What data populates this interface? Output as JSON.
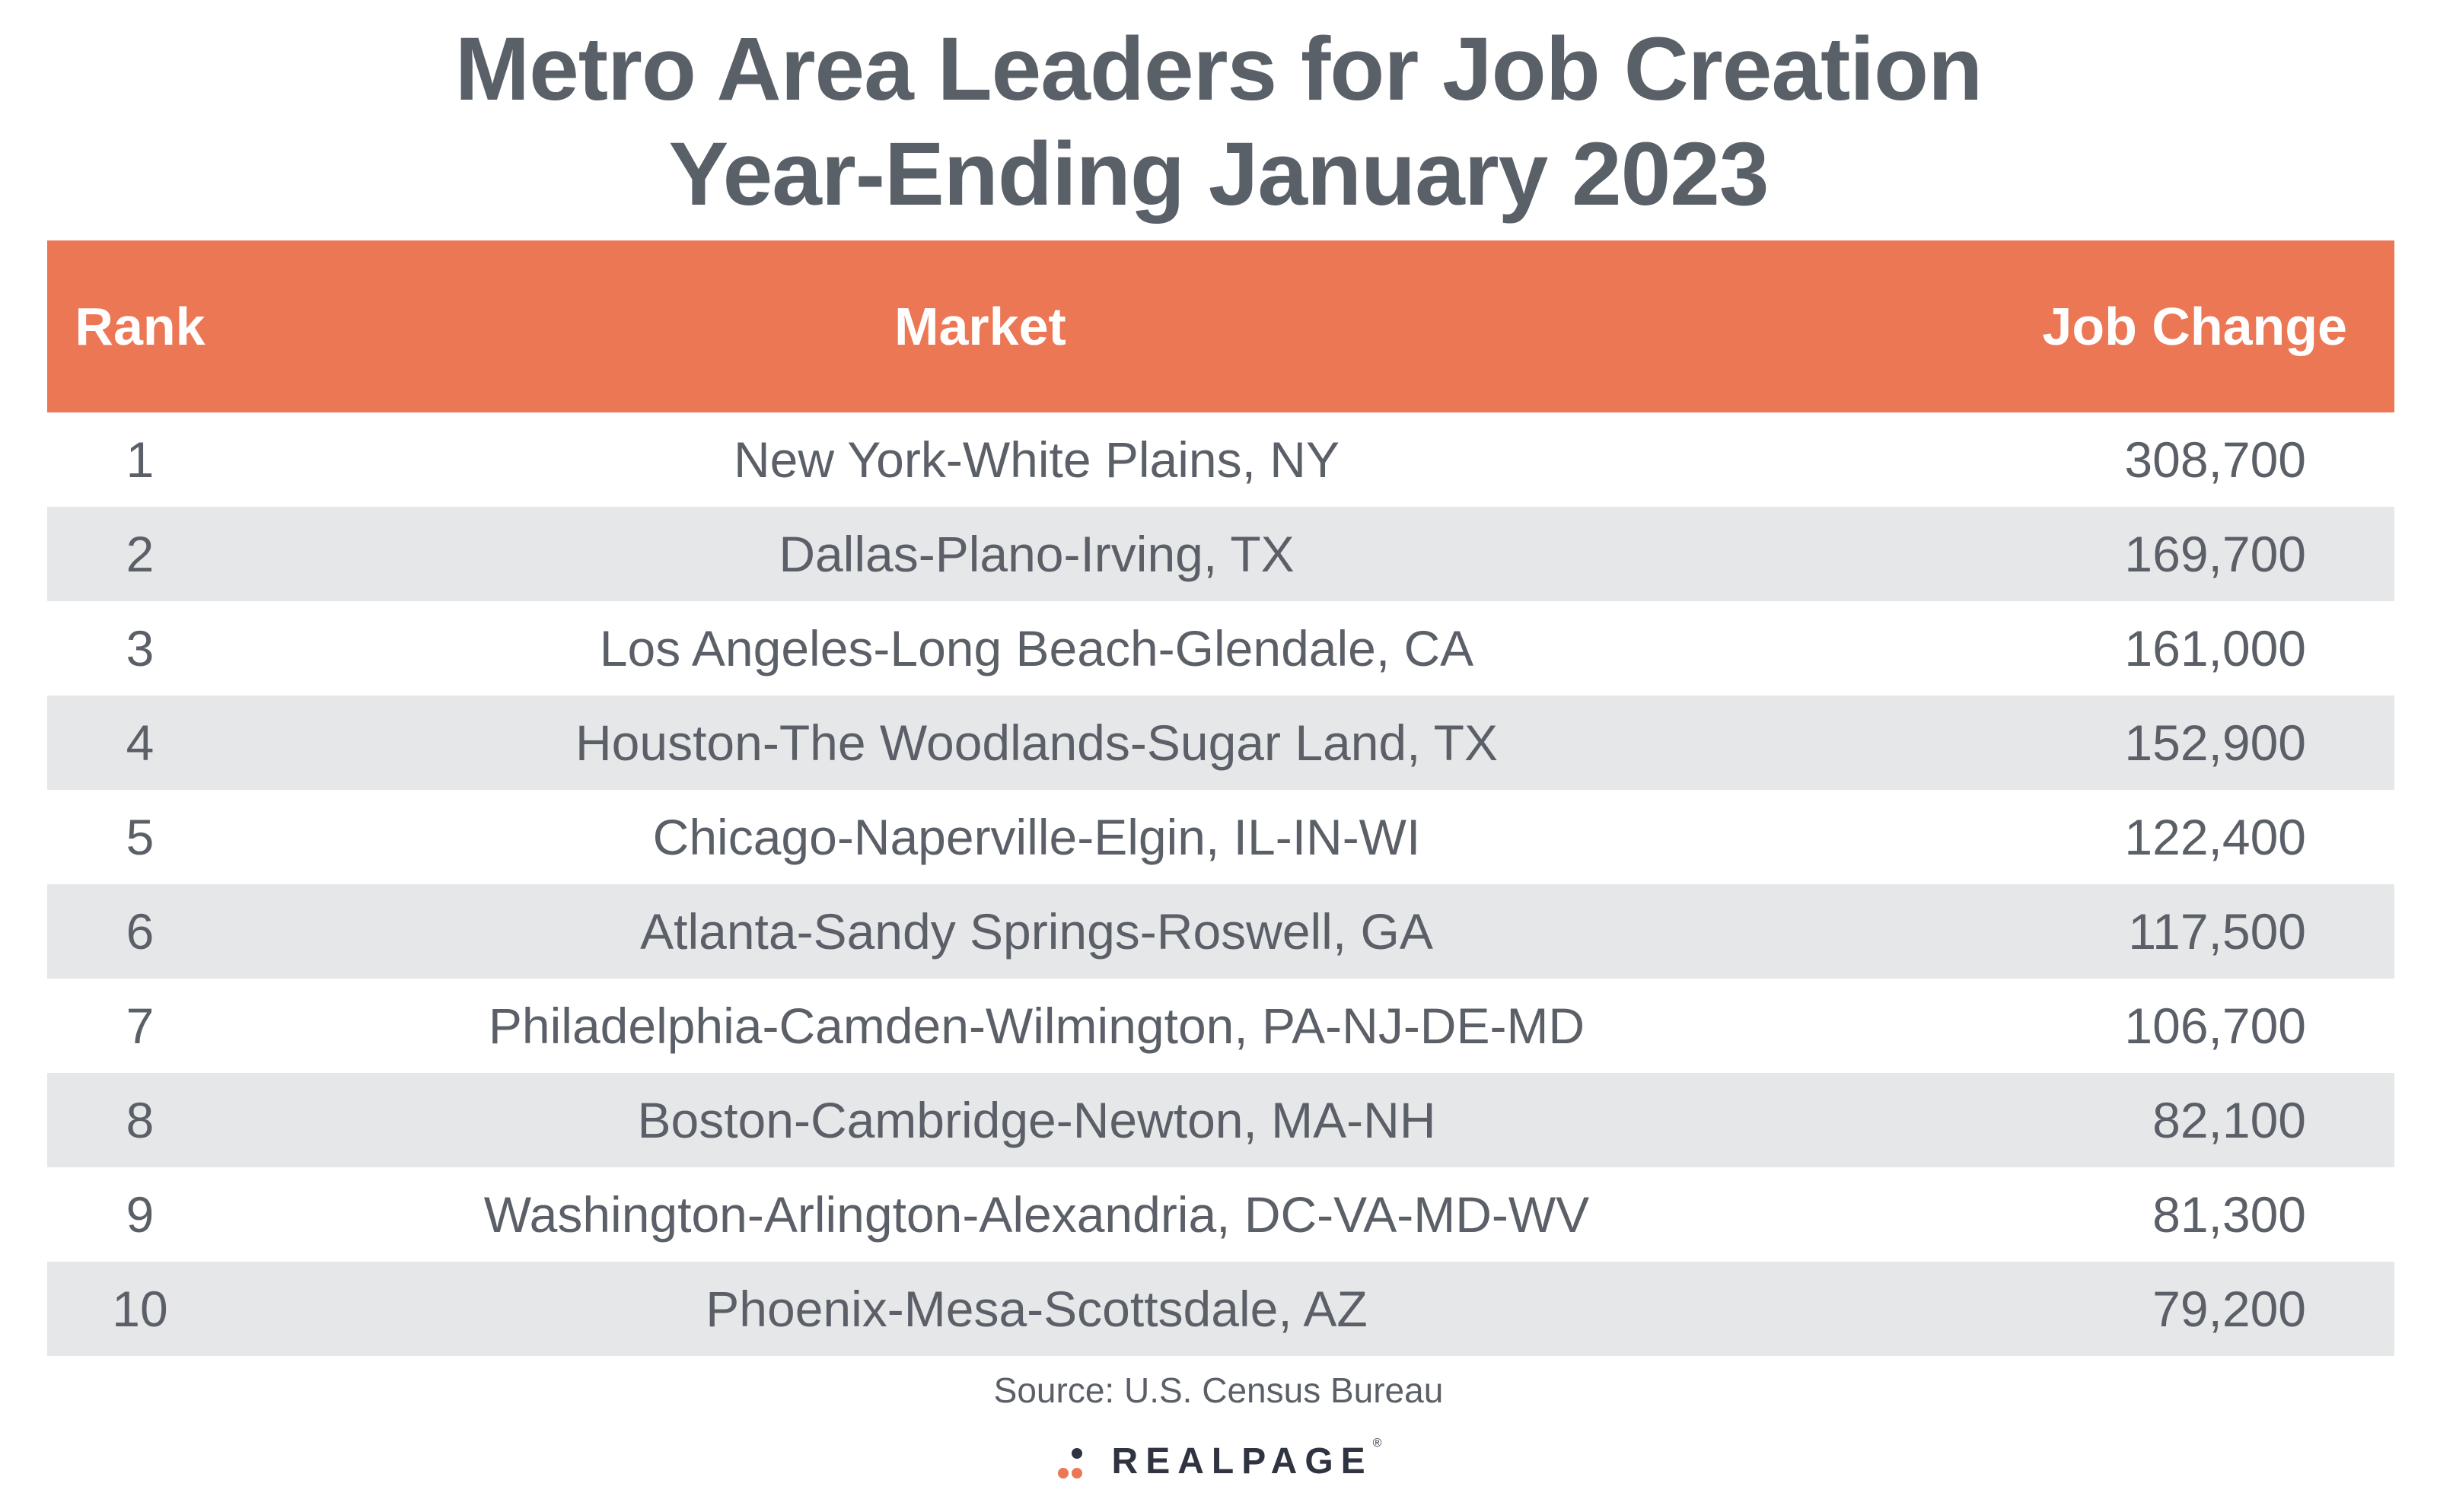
{
  "title": {
    "line1": "Metro Area Leaders for Job Creation",
    "line2": "Year-Ending January 2023"
  },
  "colors": {
    "header_bg": "#ec7755",
    "header_text": "#ffffff",
    "alt_row_bg": "#e6e7e9",
    "body_text": "#5b6068",
    "title_text": "#5a6068"
  },
  "chart_data": {
    "type": "table",
    "title": "Metro Area Leaders for Job Creation Year-Ending January 2023",
    "columns": [
      "Rank",
      "Market",
      "Job Change"
    ],
    "rows": [
      {
        "rank": "1",
        "market": "New York-White Plains, NY",
        "job_change": "308,700"
      },
      {
        "rank": "2",
        "market": "Dallas-Plano-Irving, TX",
        "job_change": "169,700"
      },
      {
        "rank": "3",
        "market": "Los Angeles-Long Beach-Glendale, CA",
        "job_change": "161,000"
      },
      {
        "rank": "4",
        "market": "Houston-The Woodlands-Sugar Land, TX",
        "job_change": "152,900"
      },
      {
        "rank": "5",
        "market": "Chicago-Naperville-Elgin, IL-IN-WI",
        "job_change": "122,400"
      },
      {
        "rank": "6",
        "market": "Atlanta-Sandy Springs-Roswell, GA",
        "job_change": "117,500"
      },
      {
        "rank": "7",
        "market": "Philadelphia-Camden-Wilmington, PA-NJ-DE-MD",
        "job_change": "106,700"
      },
      {
        "rank": "8",
        "market": "Boston-Cambridge-Newton, MA-NH",
        "job_change": "82,100"
      },
      {
        "rank": "9",
        "market": "Washington-Arlington-Alexandria, DC-VA-MD-WV",
        "job_change": "81,300"
      },
      {
        "rank": "10",
        "market": "Phoenix-Mesa-Scottsdale, AZ",
        "job_change": "79,200"
      }
    ],
    "values": [
      308700,
      169700,
      161000,
      152900,
      122400,
      117500,
      106700,
      82100,
      81300,
      79200
    ]
  },
  "source": "Source: U.S. Census Bureau",
  "logo": {
    "text": "REALPAGE",
    "tm": "®",
    "icon": "realpage-dots-icon"
  }
}
